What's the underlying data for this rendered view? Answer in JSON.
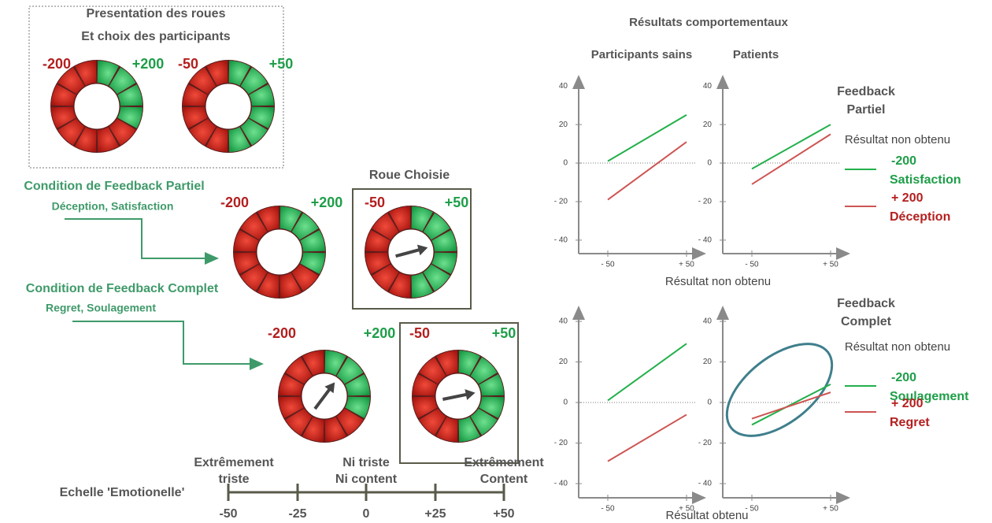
{
  "presentation": {
    "title": [
      "Presentation des roues",
      "Et choix des participants"
    ],
    "wheels": [
      {
        "loss": "-200",
        "gain": "+200"
      },
      {
        "loss": "-50",
        "gain": "+50"
      }
    ]
  },
  "partial": {
    "title": "Condition de Feedback Partiel",
    "subtitle": "Déception, Satisfaction",
    "chosen_label": "Roue Choisie",
    "wheels": [
      {
        "loss": "-200",
        "gain": "+200"
      },
      {
        "loss": "-50",
        "gain": "+50"
      }
    ]
  },
  "complete": {
    "title": "Condition de Feedback Complet",
    "subtitle": "Regret, Soulagement",
    "wheels": [
      {
        "loss": "-200",
        "gain": "+200"
      },
      {
        "loss": "-50",
        "gain": "+50"
      }
    ]
  },
  "scale": {
    "label": "Echelle 'Emotionelle'",
    "anchors": [
      [
        "Extrêmement",
        "triste"
      ],
      [
        "Ni triste",
        "Ni content"
      ],
      [
        "Extrêmement",
        "Content"
      ]
    ],
    "ticks": [
      "-50",
      "-25",
      "0",
      "+25",
      "+50"
    ]
  },
  "results": {
    "title": "Résultats comportementaux",
    "x_label_top": "Résultat non obtenu",
    "x_label_bottom": "Résultat obtenu",
    "legends": [
      {
        "title": [
          "Feedback",
          "Partiel"
        ],
        "subtitle": "Résultat non obtenu",
        "entries": [
          [
            "-200",
            "Satisfaction"
          ],
          [
            "+ 200",
            "Déception"
          ]
        ]
      },
      {
        "title": [
          "Feedback",
          "Complet"
        ],
        "subtitle": "Résultat non obtenu",
        "entries": [
          [
            "-200",
            "Soulagement"
          ],
          [
            "+ 200",
            "Regret"
          ]
        ]
      }
    ]
  },
  "chart_data": [
    {
      "type": "line",
      "title": "Participants sains",
      "x": [
        -50,
        50
      ],
      "xlim": [
        -87,
        73
      ],
      "ylim": [
        -47,
        45
      ],
      "xticks": [
        {
          "value": -50,
          "label": "- 50"
        },
        {
          "value": 50,
          "label": "+ 50"
        }
      ],
      "yticks": [
        40,
        20,
        0,
        {
          "value": -20,
          "label": "- 20"
        },
        {
          "value": -40,
          "label": "- 40"
        }
      ],
      "series": [
        {
          "color": "#22b04b",
          "values": [
            1,
            25
          ]
        },
        {
          "color": "#cd5552",
          "values": [
            -19,
            11
          ]
        }
      ]
    },
    {
      "type": "line",
      "title": "Patients",
      "x": [
        -50,
        50
      ],
      "xlim": [
        -87,
        73
      ],
      "ylim": [
        -47,
        45
      ],
      "xticks": [
        {
          "value": -50,
          "label": "- 50"
        },
        {
          "value": 50,
          "label": "+ 50"
        }
      ],
      "yticks": [
        40,
        20,
        0,
        {
          "value": -20,
          "label": "- 20"
        },
        {
          "value": -40,
          "label": "- 40"
        }
      ],
      "series": [
        {
          "color": "#22b04b",
          "values": [
            -3,
            20
          ]
        },
        {
          "color": "#cd5552",
          "values": [
            -11,
            15
          ]
        }
      ]
    },
    {
      "type": "line",
      "x": [
        -50,
        50
      ],
      "xlim": [
        -87,
        73
      ],
      "ylim": [
        -47,
        47
      ],
      "xticks": [
        {
          "value": -50,
          "label": "- 50"
        },
        {
          "value": 50,
          "label": "+ 50"
        }
      ],
      "yticks": [
        40,
        20,
        0,
        {
          "value": -20,
          "label": "- 20"
        },
        {
          "value": -40,
          "label": "- 40"
        }
      ],
      "series": [
        {
          "color": "#22b04b",
          "values": [
            1,
            29
          ]
        },
        {
          "color": "#cd5552",
          "values": [
            -29,
            -6
          ]
        }
      ]
    },
    {
      "type": "line",
      "x": [
        -50,
        50
      ],
      "xlim": [
        -87,
        73
      ],
      "ylim": [
        -47,
        47
      ],
      "xticks": [
        {
          "value": -50,
          "label": "- 50"
        },
        {
          "value": 50,
          "label": "+ 50"
        }
      ],
      "yticks": [
        40,
        20,
        0,
        {
          "value": -20,
          "label": "- 20"
        },
        {
          "value": -40,
          "label": "- 40"
        }
      ],
      "series": [
        {
          "color": "#22b04b",
          "values": [
            -11,
            9
          ]
        },
        {
          "color": "#cd5552",
          "values": [
            -8,
            5
          ]
        }
      ]
    }
  ]
}
